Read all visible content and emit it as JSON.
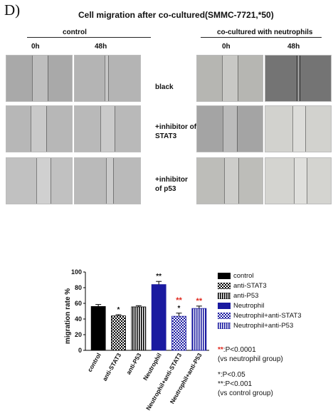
{
  "figure": {
    "panel_letter": "D)",
    "title": "Cell migration after co-cultured(SMMC-7721,*50)",
    "groups": [
      "control",
      "co-cultured with neutrophils"
    ],
    "time_points": [
      "0h",
      "48h"
    ],
    "row_labels": [
      [
        "black"
      ],
      [
        "+inhibitor of",
        "STAT3"
      ],
      [
        "+inhibitor",
        "of p53"
      ]
    ]
  },
  "legend": {
    "items": [
      {
        "label": "control",
        "color": "#000000",
        "pattern": "solid"
      },
      {
        "label": "anti-STAT3",
        "color": "#000000",
        "pattern": "checker"
      },
      {
        "label": "anti-P53",
        "color": "#000000",
        "pattern": "vlines"
      },
      {
        "label": "Neutrophil",
        "color": "#1a1aa0",
        "pattern": "solid"
      },
      {
        "label": "Neutrophil+anti-STAT3",
        "color": "#1a1aa0",
        "pattern": "checker"
      },
      {
        "label": "Neutrophil+anti-P53",
        "color": "#1a1aa0",
        "pattern": "vlines"
      }
    ]
  },
  "notes": {
    "red_marker": "**",
    "red_line1": ":P<0.0001",
    "red_line2": "(vs neutrophil group)",
    "black_line1": "*:P<0.05",
    "black_line2": "**:P<0.001",
    "black_line3": "(vs control group)"
  },
  "chart_data": {
    "type": "bar",
    "ylabel": "migration rate %",
    "ylim": [
      0,
      100
    ],
    "yticks": [
      0,
      20,
      40,
      60,
      80,
      100
    ],
    "categories": [
      "control",
      "anti-STAT3",
      "anti-P53",
      "Neutrophil",
      "Neutrophil+anti-STAT3",
      "Neutrophil+anti-P53"
    ],
    "values": [
      56,
      44,
      55.5,
      84,
      43.5,
      53.5
    ],
    "errors": [
      2.5,
      1.5,
      1.5,
      4,
      4,
      3
    ],
    "colors": [
      "#000000",
      "#000000",
      "#000000",
      "#1a1aa0",
      "#1a1aa0",
      "#1a1aa0"
    ],
    "patterns": [
      "solid",
      "checker",
      "vlines",
      "solid",
      "checker",
      "vlines"
    ],
    "significance_black": [
      "",
      "*",
      "",
      "**",
      "*",
      ""
    ],
    "significance_red": [
      "",
      "",
      "",
      "",
      "**",
      "**"
    ]
  }
}
